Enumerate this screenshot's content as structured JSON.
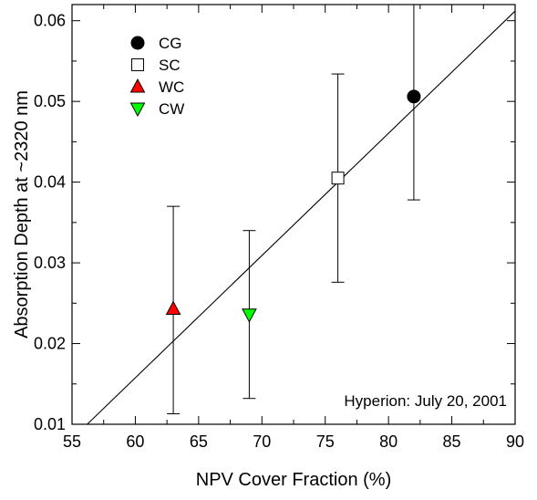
{
  "chart_data": {
    "type": "scatter",
    "xlabel": "NPV Cover Fraction (%)",
    "ylabel": "Absorption Depth at ~2320 nm",
    "xlim": [
      55,
      90
    ],
    "ylim": [
      0.01,
      0.062
    ],
    "xticks": [
      55,
      60,
      65,
      70,
      75,
      80,
      85,
      90
    ],
    "xtick_labels": [
      "55",
      "60",
      "65",
      "70",
      "75",
      "80",
      "85",
      "90"
    ],
    "yticks": [
      0.01,
      0.02,
      0.03,
      0.04,
      0.05,
      0.06
    ],
    "ytick_labels": [
      "0.01",
      "0.02",
      "0.03",
      "0.04",
      "0.05",
      "0.06"
    ],
    "grid": false,
    "legend_position": "top-left",
    "annotation": "Hyperion: July 20, 2001",
    "fit_line": {
      "x": [
        56.2,
        90.0
      ],
      "y": [
        0.01,
        0.0612
      ]
    },
    "series": [
      {
        "name": "CG",
        "marker": "circle",
        "color": "#000000",
        "x": 82,
        "y": 0.0506,
        "ymin": 0.0378,
        "ymax": 0.062
      },
      {
        "name": "SC",
        "marker": "square-open",
        "color": "#ffffff",
        "x": 76,
        "y": 0.0405,
        "ymin": 0.0276,
        "ymax": 0.0534
      },
      {
        "name": "WC",
        "marker": "triangle-up",
        "color": "#ff0000",
        "x": 63,
        "y": 0.0243,
        "ymin": 0.0113,
        "ymax": 0.037
      },
      {
        "name": "CW",
        "marker": "triangle-down",
        "color": "#00ff00",
        "x": 69,
        "y": 0.0236,
        "ymin": 0.0132,
        "ymax": 0.034
      }
    ]
  }
}
